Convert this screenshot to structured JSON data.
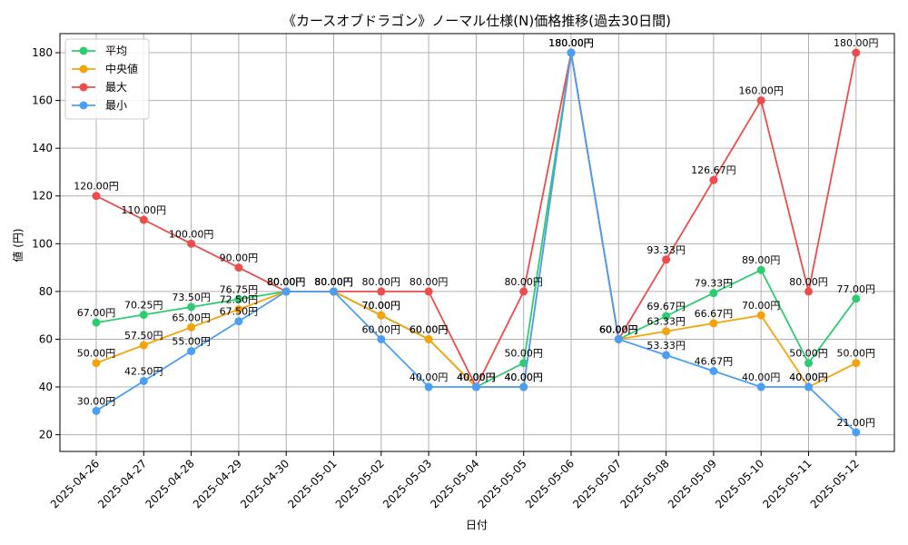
{
  "chart_data": {
    "type": "line",
    "title": "《カースオブドラゴン》ノーマル仕様(N)価格推移(過去30日間)",
    "xlabel": "日付",
    "ylabel": "値 (円)",
    "ylim": [
      13,
      188
    ],
    "yticks": [
      20,
      40,
      60,
      80,
      100,
      120,
      140,
      160,
      180
    ],
    "grid": true,
    "legend_position": "top-left",
    "label_suffix": "円",
    "categories": [
      "2025-04-26",
      "2025-04-27",
      "2025-04-28",
      "2025-04-29",
      "2025-04-30",
      "2025-05-01",
      "2025-05-02",
      "2025-05-03",
      "2025-05-04",
      "2025-05-05",
      "2025-05-06",
      "2025-05-07",
      "2025-05-08",
      "2025-05-09",
      "2025-05-10",
      "2025-05-11",
      "2025-05-12"
    ],
    "series": [
      {
        "name": "平均",
        "color": "#2ecc71",
        "values": [
          67.0,
          70.25,
          73.5,
          76.75,
          80.0,
          80.0,
          70.0,
          60.0,
          40.0,
          50.0,
          180.0,
          60.0,
          69.67,
          79.33,
          89.0,
          50.0,
          77.0
        ]
      },
      {
        "name": "中央値",
        "color": "#f5a30a",
        "values": [
          50.0,
          57.5,
          65.0,
          72.5,
          80.0,
          80.0,
          70.0,
          60.0,
          40.0,
          40.0,
          180.0,
          60.0,
          63.33,
          66.67,
          70.0,
          40.0,
          50.0
        ]
      },
      {
        "name": "最大",
        "color": "#ef4b4b",
        "values": [
          120.0,
          110.0,
          100.0,
          90.0,
          80.0,
          80.0,
          80.0,
          80.0,
          40.0,
          80.0,
          180.0,
          60.0,
          93.33,
          126.67,
          160.0,
          80.0,
          180.0
        ]
      },
      {
        "name": "最小",
        "color": "#4a9ff5",
        "values": [
          30.0,
          42.5,
          55.0,
          67.5,
          80.0,
          80.0,
          60.0,
          40.0,
          40.0,
          40.0,
          180.0,
          60.0,
          53.33,
          46.67,
          40.0,
          40.0,
          21.0
        ]
      }
    ]
  }
}
